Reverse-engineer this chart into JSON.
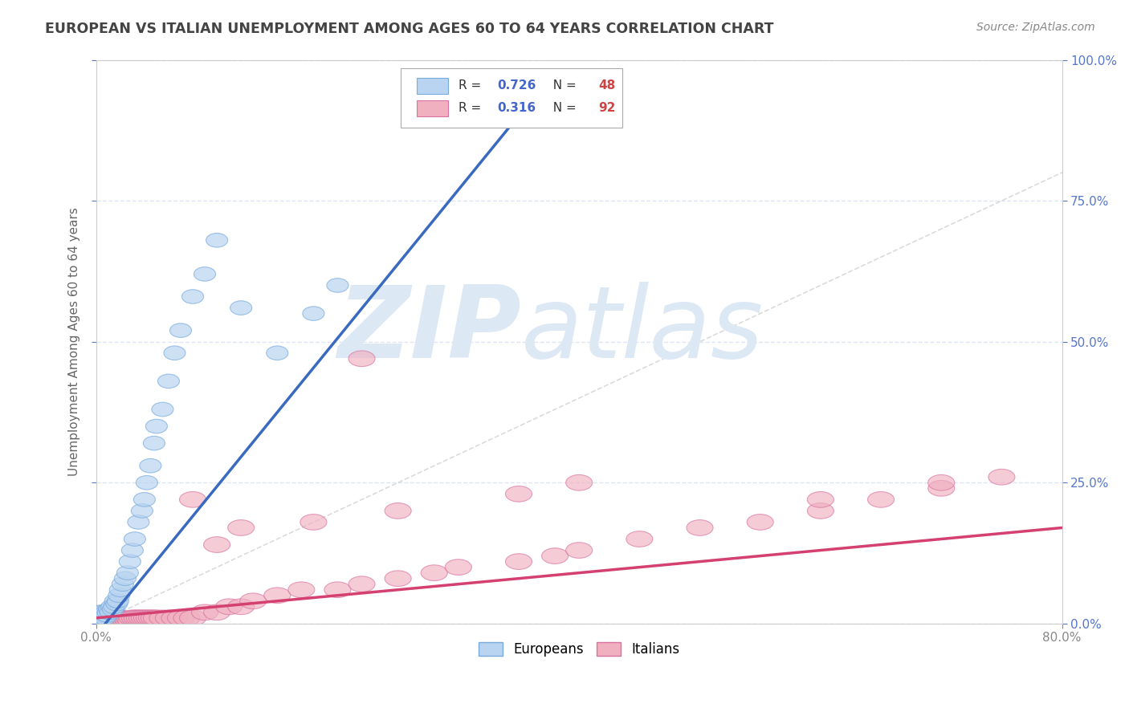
{
  "title": "EUROPEAN VS ITALIAN UNEMPLOYMENT AMONG AGES 60 TO 64 YEARS CORRELATION CHART",
  "source": "Source: ZipAtlas.com",
  "ylabel_label": "Unemployment Among Ages 60 to 64 years",
  "european_R": 0.726,
  "european_N": 48,
  "italian_R": 0.316,
  "italian_N": 92,
  "european_x": [
    0.001,
    0.001,
    0.002,
    0.002,
    0.003,
    0.003,
    0.004,
    0.005,
    0.005,
    0.006,
    0.007,
    0.008,
    0.009,
    0.01,
    0.011,
    0.012,
    0.013,
    0.014,
    0.015,
    0.016,
    0.017,
    0.018,
    0.019,
    0.02,
    0.022,
    0.024,
    0.026,
    0.028,
    0.03,
    0.032,
    0.035,
    0.038,
    0.04,
    0.042,
    0.045,
    0.048,
    0.05,
    0.055,
    0.06,
    0.065,
    0.07,
    0.08,
    0.09,
    0.1,
    0.12,
    0.15,
    0.18,
    0.2
  ],
  "european_y": [
    0.01,
    0.015,
    0.01,
    0.02,
    0.01,
    0.015,
    0.01,
    0.01,
    0.02,
    0.015,
    0.01,
    0.02,
    0.015,
    0.02,
    0.025,
    0.02,
    0.03,
    0.025,
    0.03,
    0.04,
    0.035,
    0.04,
    0.05,
    0.06,
    0.07,
    0.08,
    0.09,
    0.11,
    0.13,
    0.15,
    0.18,
    0.2,
    0.22,
    0.25,
    0.28,
    0.32,
    0.35,
    0.38,
    0.43,
    0.48,
    0.52,
    0.58,
    0.62,
    0.68,
    0.56,
    0.48,
    0.55,
    0.6
  ],
  "italian_x": [
    0.0005,
    0.001,
    0.001,
    0.002,
    0.002,
    0.003,
    0.003,
    0.004,
    0.004,
    0.005,
    0.005,
    0.005,
    0.006,
    0.006,
    0.007,
    0.007,
    0.008,
    0.008,
    0.009,
    0.009,
    0.01,
    0.01,
    0.011,
    0.011,
    0.012,
    0.013,
    0.014,
    0.015,
    0.015,
    0.016,
    0.017,
    0.018,
    0.019,
    0.02,
    0.021,
    0.022,
    0.023,
    0.024,
    0.025,
    0.026,
    0.027,
    0.028,
    0.029,
    0.03,
    0.032,
    0.034,
    0.036,
    0.038,
    0.04,
    0.042,
    0.044,
    0.046,
    0.048,
    0.05,
    0.055,
    0.06,
    0.065,
    0.07,
    0.075,
    0.08,
    0.09,
    0.1,
    0.11,
    0.12,
    0.13,
    0.15,
    0.17,
    0.2,
    0.22,
    0.25,
    0.28,
    0.3,
    0.35,
    0.38,
    0.4,
    0.45,
    0.5,
    0.55,
    0.6,
    0.65,
    0.7,
    0.75,
    0.08,
    0.35,
    0.22,
    0.18,
    0.1,
    0.4,
    0.6,
    0.7,
    0.12,
    0.25
  ],
  "italian_y": [
    0.005,
    0.005,
    0.005,
    0.005,
    0.008,
    0.005,
    0.005,
    0.005,
    0.005,
    0.005,
    0.005,
    0.008,
    0.005,
    0.005,
    0.005,
    0.008,
    0.005,
    0.005,
    0.005,
    0.008,
    0.005,
    0.008,
    0.005,
    0.008,
    0.005,
    0.008,
    0.005,
    0.005,
    0.008,
    0.005,
    0.005,
    0.008,
    0.005,
    0.01,
    0.005,
    0.008,
    0.005,
    0.008,
    0.005,
    0.008,
    0.005,
    0.008,
    0.005,
    0.01,
    0.01,
    0.01,
    0.01,
    0.01,
    0.01,
    0.01,
    0.01,
    0.01,
    0.01,
    0.01,
    0.01,
    0.01,
    0.01,
    0.01,
    0.01,
    0.01,
    0.02,
    0.02,
    0.03,
    0.03,
    0.04,
    0.05,
    0.06,
    0.06,
    0.07,
    0.08,
    0.09,
    0.1,
    0.11,
    0.12,
    0.13,
    0.15,
    0.17,
    0.18,
    0.2,
    0.22,
    0.24,
    0.26,
    0.22,
    0.23,
    0.47,
    0.18,
    0.14,
    0.25,
    0.22,
    0.25,
    0.17,
    0.2
  ],
  "xlim": [
    0.0,
    0.8
  ],
  "ylim": [
    0.0,
    1.0
  ],
  "xticks": [
    0.0,
    0.8
  ],
  "yticks": [
    0.0,
    0.25,
    0.5,
    0.75,
    1.0
  ],
  "background_color": "#ffffff",
  "grid_color": "#d8dff0",
  "european_line_color": "#3a6abf",
  "italian_line_color": "#d44070",
  "european_scatter_face": "#b8d4f0",
  "european_scatter_edge": "#7aabdd",
  "italian_scatter_face": "#f0b0c0",
  "italian_scatter_edge": "#d870a0",
  "diag_line_color": "#cccccc",
  "title_color": "#444444",
  "source_color": "#888888",
  "legend_text_R_color": "#4466cc",
  "legend_text_N_color": "#cc4444",
  "watermark_color": "#dde8f5",
  "eu_trend_x_end": 0.38,
  "it_trend_x_end": 0.8
}
